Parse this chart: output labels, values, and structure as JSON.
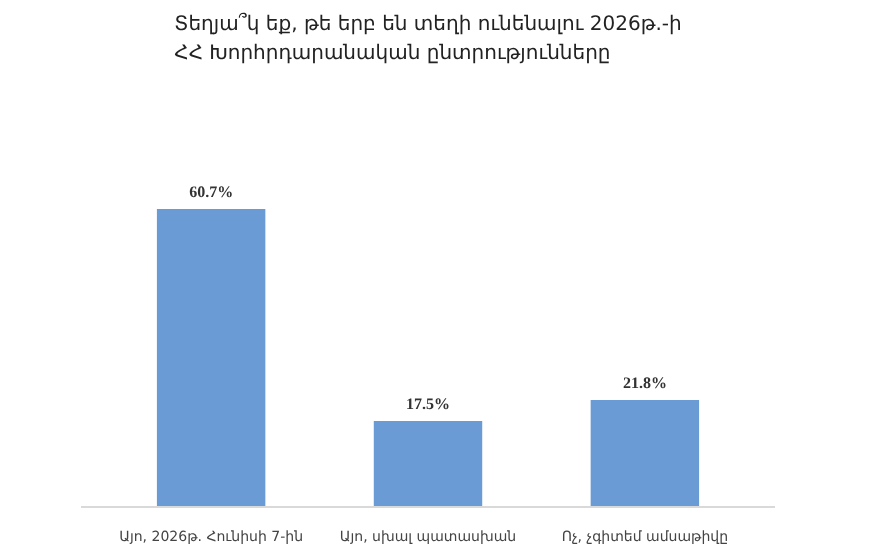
{
  "chart_data": {
    "type": "bar",
    "title": "Տեղյա՞կ եք, թե երբ են տեղի ունենալու 2026թ.-ի\nՀՀ Խորհրդարանական ընտրությունները",
    "categories": [
      "Այո, 2026թ. Հունիսի 7-ին",
      "Այո, սխալ պատասխան",
      "Ոչ, չգիտեմ ամսաթիվը"
    ],
    "values": [
      60.7,
      17.5,
      21.8
    ],
    "value_labels": [
      "60.7%",
      "17.5%",
      "21.8%"
    ],
    "color": "#6a9bd4",
    "grid": false
  }
}
